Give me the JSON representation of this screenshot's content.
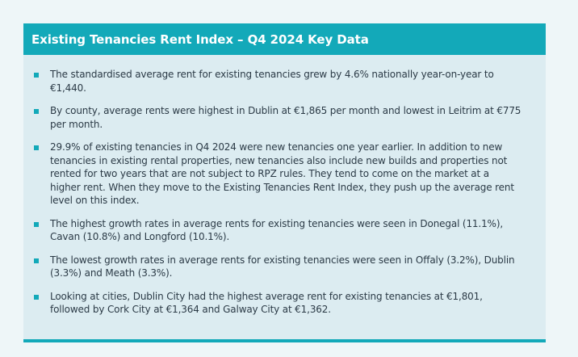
{
  "panel": {
    "title": "Existing Tenancies Rent Index – Q4 2024 Key Data",
    "accent_color": "#13a9b9",
    "background_color": "#dcecf1",
    "bullets": [
      "The standardised average rent for existing tenancies grew by 4.6% nationally year-on-year to €1,440.",
      "By county, average rents were highest in Dublin at €1,865 per month and lowest in Leitrim at €775 per month.",
      "29.9% of existing tenancies in Q4 2024 were new tenancies one year earlier. In addition to new tenancies in existing rental properties, new tenancies also include new builds and properties not rented for two years that are not subject to RPZ rules. They tend to come on the market at a higher rent. When they move to the Existing Tenancies Rent Index, they push up the average rent level on this index.",
      "The highest growth rates in average rents for existing tenancies were seen in Donegal (11.1%), Cavan (10.8%) and Longford (10.1%).",
      "The lowest growth rates in average rents for existing tenancies were seen in Offaly (3.2%), Dublin (3.3%) and Meath (3.3%).",
      "Looking at cities, Dublin City had the highest average rent for existing tenancies at €1,801, followed by Cork City at €1,364 and Galway City at €1,362."
    ]
  }
}
